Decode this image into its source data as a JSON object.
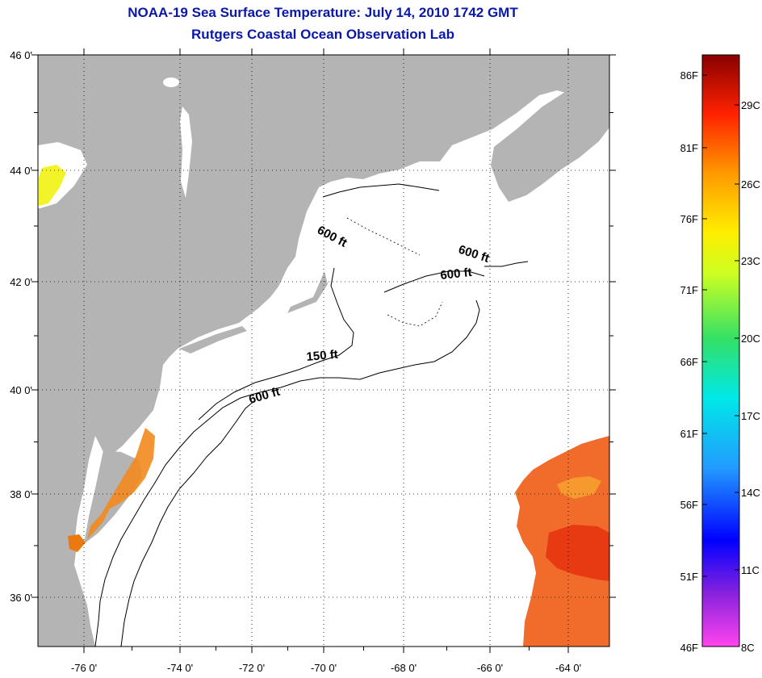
{
  "title": {
    "line1": "NOAA-19 Sea Surface Temperature:  July 14, 2010 1742 GMT",
    "line2": "Rutgers Coastal Ocean Observation Lab"
  },
  "map": {
    "lon_range": [
      -77,
      -63
    ],
    "lat_range": [
      35,
      46
    ],
    "grid": "dotted",
    "lon_ticks": [
      "-76 0'",
      "-74 0'",
      "-72 0'",
      "-70 0'",
      "-68 0'",
      "-66 0'",
      "-64 0'"
    ],
    "lat_ticks": [
      "36 0'",
      "38 0'",
      "40 0'",
      "42 0'",
      "44 0'",
      "46 0'"
    ],
    "land_color": "#b4b4b4",
    "contour_labels": [
      "600 ft",
      "600 ft",
      "600 ft",
      "150 ft",
      "600 ft"
    ]
  },
  "colorbar": {
    "colors": [
      "#ff44ee",
      "#8822dd",
      "#0000ff",
      "#2299ff",
      "#00e8e8",
      "#33e066",
      "#ccff22",
      "#ffee00",
      "#ff9900",
      "#ff2200",
      "#880000"
    ],
    "fahrenheit_labels": [
      "86F",
      "81F",
      "76F",
      "71F",
      "66F",
      "61F",
      "56F",
      "51F",
      "46F"
    ],
    "celsius_labels": [
      "29C",
      "26C",
      "23C",
      "20C",
      "17C",
      "14C",
      "11C",
      "8C"
    ]
  }
}
